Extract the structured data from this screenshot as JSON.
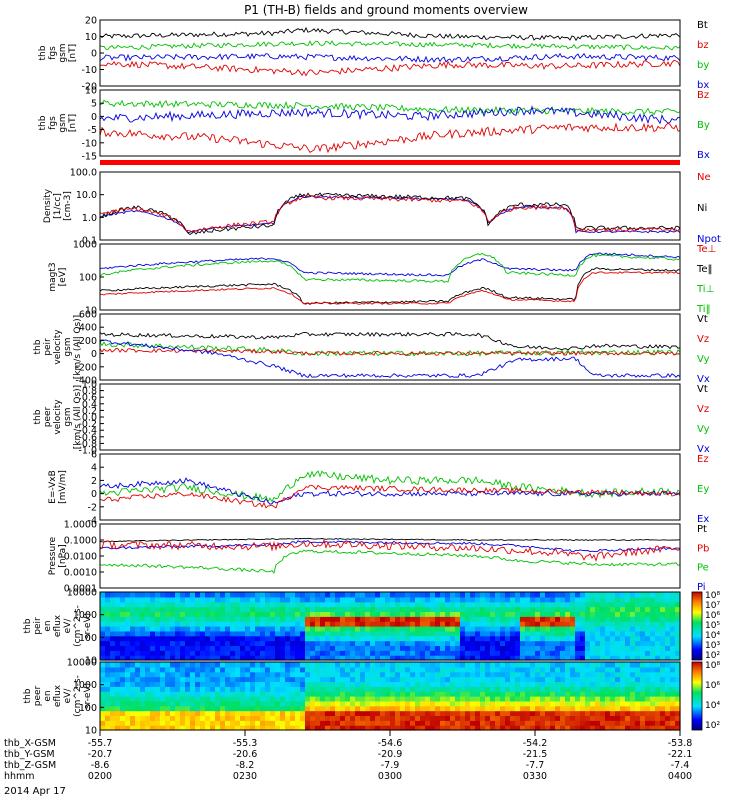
{
  "chart_data": {
    "type": "line",
    "title": "P1 (TH-B) fields and ground moments overview",
    "date_label": "2014 Apr 17",
    "time_ticks": [
      "0200",
      "0230",
      "0300",
      "0330",
      "0400"
    ],
    "orbit_rows": [
      {
        "label": "thb_X-GSM",
        "values": [
          "-55.7",
          "-55.3",
          "-54.6",
          "-54.2",
          "-53.8"
        ]
      },
      {
        "label": "thb_Y-GSM",
        "values": [
          "-20.7",
          "-20.6",
          "-20.9",
          "-21.5",
          "-22.1"
        ]
      },
      {
        "label": "thb_Z-GSM",
        "values": [
          "-8.6",
          "-8.2",
          "-7.9",
          "-7.7",
          "-7.4"
        ]
      },
      {
        "label": "hhmm",
        "values": [
          "0200",
          "0230",
          "0300",
          "0330",
          "0400"
        ]
      }
    ],
    "panels": [
      {
        "id": "fgs_gsm",
        "ylabel": [
          "thb",
          "fgs",
          "gsm",
          "[nT]"
        ],
        "scale": "linear",
        "ylim": [
          -20,
          20
        ],
        "ticks": [
          "20",
          "10",
          "0",
          "-10",
          "-20"
        ],
        "legend": [
          {
            "name": "Bt",
            "color": "#000000"
          },
          {
            "name": "bz",
            "color": "#e00000"
          },
          {
            "name": "by",
            "color": "#00c000"
          },
          {
            "name": "bx",
            "color": "#0000e0"
          }
        ]
      },
      {
        "id": "fgs_dsl",
        "ylabel": [
          "thb",
          "fgs",
          "gsm",
          "[nT]"
        ],
        "scale": "linear",
        "ylim": [
          -18,
          12
        ],
        "ticks": [
          "10",
          "5",
          "0",
          "-5",
          "-10",
          "-15"
        ],
        "legend": [
          {
            "name": "Bz",
            "color": "#e00000"
          },
          {
            "name": "By",
            "color": "#00c000"
          },
          {
            "name": "Bx",
            "color": "#0000e0"
          }
        ]
      },
      {
        "id": "density",
        "ylabel": [
          "Density",
          "[1/cc]",
          "[cm-3]"
        ],
        "scale": "log",
        "ylim": [
          0.08,
          150
        ],
        "ticks": [
          "100.0",
          "10.0",
          "1.0",
          "0.1"
        ],
        "legend": [
          {
            "name": "Ne",
            "color": "#e00000"
          },
          {
            "name": "Ni",
            "color": "#000000"
          },
          {
            "name": "Npot",
            "color": "#0000e0"
          }
        ]
      },
      {
        "id": "temperature",
        "ylabel": [
          "magt3",
          "[eV]"
        ],
        "scale": "log",
        "ylim": [
          4,
          4000
        ],
        "ticks": [
          "1000",
          "100",
          "10"
        ],
        "legend": [
          {
            "name": "Te⊥",
            "color": "#e00000"
          },
          {
            "name": "Te‖",
            "color": "#000000"
          },
          {
            "name": "Ti⊥",
            "color": "#00c000"
          },
          {
            "name": "Ti‖",
            "color": "#00c000"
          }
        ]
      },
      {
        "id": "ion_velocity",
        "ylabel": [
          "thb",
          "peir",
          "velocity",
          "gsm",
          "[km/s (All Qs)]"
        ],
        "scale": "linear",
        "ylim": [
          -420,
          620
        ],
        "ticks": [
          "600",
          "400",
          "200",
          "0",
          "-200",
          "-400"
        ],
        "legend": [
          {
            "name": "Vt",
            "color": "#000000"
          },
          {
            "name": "Vz",
            "color": "#e00000"
          },
          {
            "name": "Vy",
            "color": "#00c000"
          },
          {
            "name": "Vx",
            "color": "#0000e0"
          }
        ]
      },
      {
        "id": "electron_velocity",
        "ylabel": [
          "thb",
          "peer",
          "velocity",
          "gsm",
          "[km/s (All Qs)]"
        ],
        "scale": "linear",
        "ylim": [
          -1,
          1
        ],
        "ticks": [
          "1.0",
          "0.8",
          "0.6",
          "0.4",
          "0.2",
          "0.0",
          "-0.2",
          "-0.4",
          "-0.6",
          "-0.8",
          "-1.0"
        ],
        "legend": [
          {
            "name": "Vt",
            "color": "#000000"
          },
          {
            "name": "Vz",
            "color": "#e00000"
          },
          {
            "name": "Vy",
            "color": "#00c000"
          },
          {
            "name": "Vx",
            "color": "#0000e0"
          }
        ]
      },
      {
        "id": "efield",
        "ylabel": [
          "E=-VxB",
          "[mV/m]"
        ],
        "scale": "linear",
        "ylim": [
          -4,
          6
        ],
        "ticks": [
          "6",
          "4",
          "2",
          "0",
          "-2",
          "-4"
        ],
        "legend": [
          {
            "name": "Ez",
            "color": "#e00000"
          },
          {
            "name": "Ey",
            "color": "#00c000"
          },
          {
            "name": "Ex",
            "color": "#0000e0"
          }
        ]
      },
      {
        "id": "pressure",
        "ylabel": [
          "Pressure",
          "[nPa]"
        ],
        "scale": "log",
        "ylim": [
          0.0001,
          1.0
        ],
        "ticks": [
          "1.0000",
          "0.1000",
          "0.0100",
          "0.0010",
          "0.0001"
        ],
        "legend": [
          {
            "name": "Pt",
            "color": "#000000"
          },
          {
            "name": "Pb",
            "color": "#e00000"
          },
          {
            "name": "Pe",
            "color": "#00c000"
          },
          {
            "name": "Pi",
            "color": "#0000e0"
          }
        ]
      },
      {
        "id": "ion_spectrogram",
        "ylabel": [
          "thb",
          "peir",
          "en",
          "eflux",
          "eV/",
          "(cm^2-s-",
          "sr-eV)"
        ],
        "scale": "log",
        "ylim": [
          5,
          20000
        ],
        "ticks": [
          "10000",
          "1000",
          "100",
          "10"
        ],
        "colorbar": {
          "labels": [
            "10⁸",
            "10⁷",
            "10⁶",
            "10⁵",
            "10⁴",
            "10³",
            "10²"
          ]
        }
      },
      {
        "id": "electron_spectrogram",
        "ylabel": [
          "thb",
          "peer",
          "en",
          "eflux",
          "eV/",
          "(cm^2-s-",
          "sr-eV)"
        ],
        "scale": "log",
        "ylim": [
          5,
          20000
        ],
        "ticks": [
          "10000",
          "1000",
          "100",
          "10"
        ],
        "colorbar": {
          "labels": [
            "10⁸",
            "10⁶",
            "10⁴",
            "10²"
          ]
        }
      }
    ]
  }
}
